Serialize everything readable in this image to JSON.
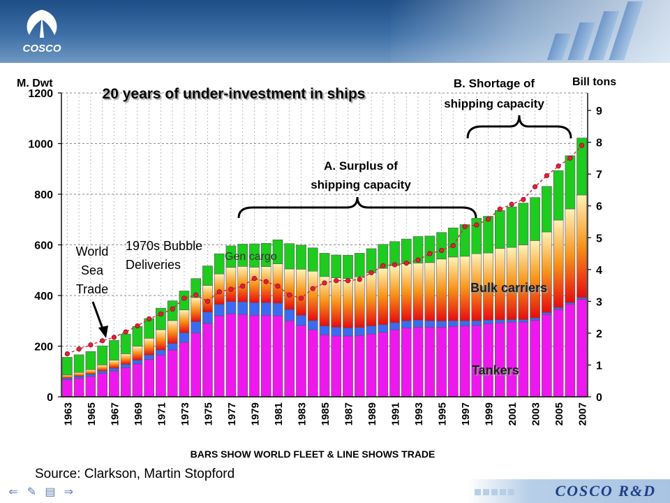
{
  "header": {
    "logo_text": "COSCO",
    "title": "20 years of under-investment in ships"
  },
  "chart_data": {
    "type": "bar",
    "stacked": true,
    "categories": [
      "1963",
      "1964",
      "1965",
      "1966",
      "1967",
      "1968",
      "1969",
      "1970",
      "1971",
      "1972",
      "1973",
      "1974",
      "1975",
      "1976",
      "1977",
      "1978",
      "1979",
      "1980",
      "1981",
      "1982",
      "1983",
      "1984",
      "1985",
      "1986",
      "1987",
      "1988",
      "1989",
      "1990",
      "1991",
      "1992",
      "1993",
      "1994",
      "1995",
      "1996",
      "1997",
      "1998",
      "1999",
      "2000",
      "2001",
      "2002",
      "2003",
      "2004",
      "2005",
      "2006",
      "2007"
    ],
    "x_tick_labels": [
      "1963",
      "1965",
      "1967",
      "1969",
      "1971",
      "1973",
      "1975",
      "1977",
      "1979",
      "1981",
      "1983",
      "1985",
      "1987",
      "1989",
      "1991",
      "1993",
      "1995",
      "1997",
      "1999",
      "2001",
      "2003",
      "2005",
      "2007"
    ],
    "ylabel": "M. Dwt",
    "ylim": [
      0,
      1200
    ],
    "yticks": [
      0,
      200,
      400,
      600,
      800,
      1000,
      1200
    ],
    "y2label": "Bill tons",
    "y2lim": [
      0,
      9.55
    ],
    "y2ticks": [
      0,
      1,
      2,
      3,
      4,
      5,
      6,
      7,
      8,
      9
    ],
    "xlabel": "BARS SHOW WORLD FLEET & LINE SHOWS TRADE",
    "grid": true,
    "series": [
      {
        "name": "Tankers",
        "color": "#ee18ee",
        "values": [
          68,
          73,
          80,
          92,
          102,
          115,
          130,
          148,
          165,
          185,
          215,
          252,
          290,
          320,
          328,
          325,
          322,
          322,
          320,
          300,
          282,
          265,
          245,
          240,
          240,
          242,
          248,
          255,
          265,
          272,
          275,
          275,
          275,
          278,
          280,
          282,
          288,
          292,
          295,
          295,
          302,
          325,
          345,
          365,
          385
        ]
      },
      {
        "name": "",
        "color": "#3b6bf0",
        "values": [
          6,
          8,
          9,
          10,
          11,
          13,
          15,
          17,
          20,
          26,
          38,
          45,
          45,
          45,
          48,
          50,
          50,
          50,
          50,
          45,
          40,
          36,
          35,
          35,
          32,
          32,
          32,
          30,
          28,
          28,
          28,
          25,
          24,
          22,
          20,
          18,
          15,
          12,
          10,
          10,
          10,
          8,
          8,
          7,
          7
        ]
      },
      {
        "name": "Bulk carriers",
        "color": "#f79318",
        "values": [
          12,
          15,
          18,
          24,
          32,
          42,
          55,
          66,
          80,
          90,
          90,
          95,
          105,
          120,
          135,
          140,
          140,
          142,
          155,
          160,
          182,
          195,
          195,
          195,
          195,
          200,
          210,
          222,
          225,
          225,
          225,
          230,
          245,
          252,
          255,
          265,
          265,
          282,
          285,
          295,
          305,
          318,
          345,
          370,
          405
        ]
      },
      {
        "name": "Gen cargo",
        "color": "#1ecb1e",
        "values": [
          70,
          70,
          72,
          75,
          78,
          78,
          78,
          78,
          85,
          78,
          75,
          75,
          77,
          80,
          85,
          88,
          92,
          92,
          95,
          100,
          95,
          92,
          92,
          90,
          92,
          93,
          95,
          95,
          95,
          98,
          105,
          105,
          105,
          115,
          125,
          140,
          145,
          150,
          160,
          165,
          170,
          180,
          195,
          210,
          225
        ]
      }
    ],
    "line": {
      "name": "World Sea Trade",
      "axis": "right",
      "color": "#e0203a",
      "values": [
        1.35,
        1.5,
        1.63,
        1.76,
        1.87,
        2.04,
        2.23,
        2.45,
        2.6,
        2.76,
        3.1,
        3.2,
        3.0,
        3.3,
        3.38,
        3.48,
        3.72,
        3.62,
        3.48,
        3.2,
        3.1,
        3.4,
        3.58,
        3.65,
        3.65,
        3.69,
        3.9,
        4.12,
        4.15,
        4.2,
        4.3,
        4.5,
        4.6,
        4.75,
        5.35,
        5.4,
        5.58,
        5.9,
        6.05,
        6.2,
        6.6,
        6.95,
        7.25,
        7.5,
        7.9
      ]
    },
    "annotations": {
      "surplus": "A. Surplus of shipping capacity",
      "shortage": "B. Shortage of shipping capacity",
      "world_sea_trade": "World Sea Trade",
      "bubble": "1970s Bubble Deliveries",
      "gen_cargo": "Gen cargo",
      "bulk_carriers": "Bulk carriers",
      "tankers": "Tankers"
    }
  },
  "footer": {
    "source": "Source: Clarkson, Martin Stopford",
    "brand": "COSCO R&D"
  }
}
